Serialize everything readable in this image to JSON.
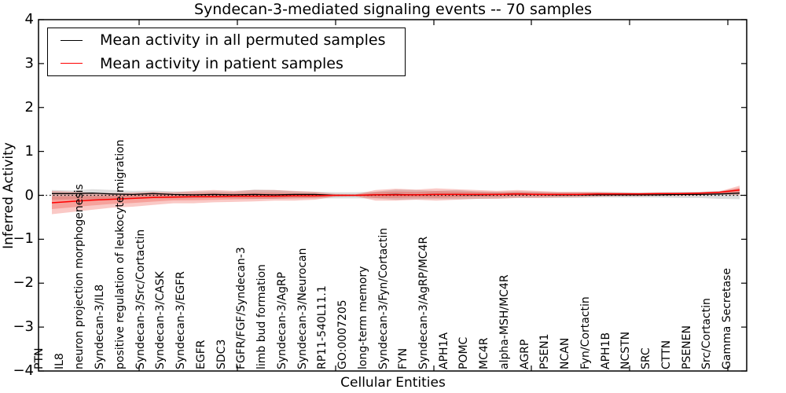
{
  "title": "Syndecan-3-mediated signaling events -- 70 samples",
  "legend": {
    "items": [
      {
        "label": "Mean activity in all permuted samples",
        "color": "#000000"
      },
      {
        "label": "Mean activity in patient samples",
        "color": "#ff0000"
      }
    ]
  },
  "axes": {
    "x_label": "Cellular Entities",
    "y_label": "Inferred Activity",
    "y_ticks": [
      4,
      3,
      2,
      1,
      0,
      -1,
      -2,
      -3,
      -4
    ],
    "ylim": [
      -4,
      4
    ]
  },
  "chart_data": {
    "type": "line",
    "title": "Syndecan-3-mediated signaling events -- 70 samples",
    "xlabel": "Cellular Entities",
    "ylabel": "Inferred Activity",
    "ylim": [
      -4,
      4
    ],
    "grid": false,
    "legend_position": "upper left",
    "zero_line": 0,
    "categories": [
      "PTN",
      "IL8",
      "neuron projection morphogenesis",
      "Syndecan-3/IL8",
      "positive regulation of leukocyte migration",
      "Syndecan-3/Src/Cortactin",
      "Syndecan-3/CASK",
      "Syndecan-3/EGFR",
      "EGFR",
      "SDC3",
      "FGFR/FGF/Syndecan-3",
      "limb bud formation",
      "Syndecan-3/AgRP",
      "Syndecan-3/Neurocan",
      "RP11-540L11.1",
      "GO:0007205",
      "long-term memory",
      "Syndecan-3/Fyn/Cortactin",
      "FYN",
      "Syndecan-3/AgRP/MC4R",
      "APH1A",
      "POMC",
      "MC4R",
      "alpha-MSH/MC4R",
      "AGRP",
      "PSEN1",
      "NCAN",
      "Fyn/Cortactin",
      "APH1B",
      "NCSTN",
      "SRC",
      "CTTN",
      "PSENEN",
      "Src/Cortactin",
      "Gamma Secretase"
    ],
    "series": [
      {
        "name": "Mean activity in all permuted samples",
        "color": "#000000",
        "values": [
          0.04,
          0.04,
          0.05,
          0.03,
          0.02,
          0.04,
          0.02,
          0.01,
          0.02,
          0.01,
          0.02,
          0.01,
          0.02,
          0.02,
          0.0,
          0.0,
          0.01,
          0.02,
          0.01,
          0.02,
          0.02,
          0.01,
          0.02,
          0.03,
          0.02,
          0.01,
          0.01,
          0.01,
          0.01,
          0.01,
          0.01,
          0.02,
          0.02,
          0.03,
          0.05
        ]
      },
      {
        "name": "Mean activity in patient samples",
        "color": "#ff0000",
        "values": [
          -0.17,
          -0.14,
          -0.11,
          -0.09,
          -0.07,
          -0.05,
          -0.04,
          -0.03,
          -0.03,
          -0.02,
          -0.02,
          -0.02,
          -0.01,
          -0.01,
          0.0,
          0.0,
          0.01,
          0.01,
          0.01,
          0.02,
          0.02,
          0.02,
          0.02,
          0.03,
          0.02,
          0.02,
          0.02,
          0.03,
          0.03,
          0.03,
          0.04,
          0.04,
          0.05,
          0.07,
          0.12
        ]
      }
    ],
    "bands": [
      {
        "name": "permuted-samples-range",
        "color": "rgba(130,130,130,0.28)",
        "upper": [
          0.12,
          0.11,
          0.14,
          0.12,
          0.1,
          0.11,
          0.09,
          0.08,
          0.09,
          0.08,
          0.13,
          0.12,
          0.09,
          0.08,
          0.07,
          0.07,
          0.08,
          0.13,
          0.12,
          0.1,
          0.12,
          0.09,
          0.08,
          0.09,
          0.08,
          0.07,
          0.07,
          0.07,
          0.07,
          0.06,
          0.07,
          0.08,
          0.08,
          0.1,
          0.15
        ],
        "lower": [
          -0.1,
          -0.09,
          -0.1,
          -0.09,
          -0.08,
          -0.07,
          -0.07,
          -0.07,
          -0.06,
          -0.07,
          -0.08,
          -0.08,
          -0.07,
          -0.07,
          -0.07,
          -0.07,
          -0.07,
          -0.1,
          -0.09,
          -0.08,
          -0.09,
          -0.08,
          -0.07,
          -0.06,
          -0.06,
          -0.06,
          -0.06,
          -0.05,
          -0.05,
          -0.05,
          -0.05,
          -0.06,
          -0.06,
          -0.08,
          -0.09
        ]
      },
      {
        "name": "patient-samples-range",
        "color": "rgba(235,45,35,0.26)",
        "upper": [
          0.1,
          0.08,
          0.06,
          0.05,
          0.06,
          0.08,
          0.07,
          0.1,
          0.12,
          0.1,
          0.12,
          0.12,
          0.1,
          0.08,
          0.03,
          0.02,
          0.12,
          0.15,
          0.13,
          0.16,
          0.14,
          0.12,
          0.1,
          0.12,
          0.1,
          0.08,
          0.08,
          0.08,
          0.07,
          0.06,
          0.06,
          0.06,
          0.07,
          0.09,
          0.22
        ],
        "lower": [
          -0.43,
          -0.38,
          -0.33,
          -0.28,
          -0.26,
          -0.22,
          -0.18,
          -0.18,
          -0.16,
          -0.15,
          -0.14,
          -0.12,
          -0.12,
          -0.1,
          -0.03,
          -0.02,
          -0.12,
          -0.12,
          -0.1,
          -0.12,
          -0.1,
          -0.08,
          -0.08,
          -0.06,
          -0.06,
          -0.05,
          -0.04,
          -0.03,
          -0.02,
          -0.02,
          -0.01,
          -0.01,
          0.0,
          0.02,
          0.0
        ]
      }
    ]
  }
}
